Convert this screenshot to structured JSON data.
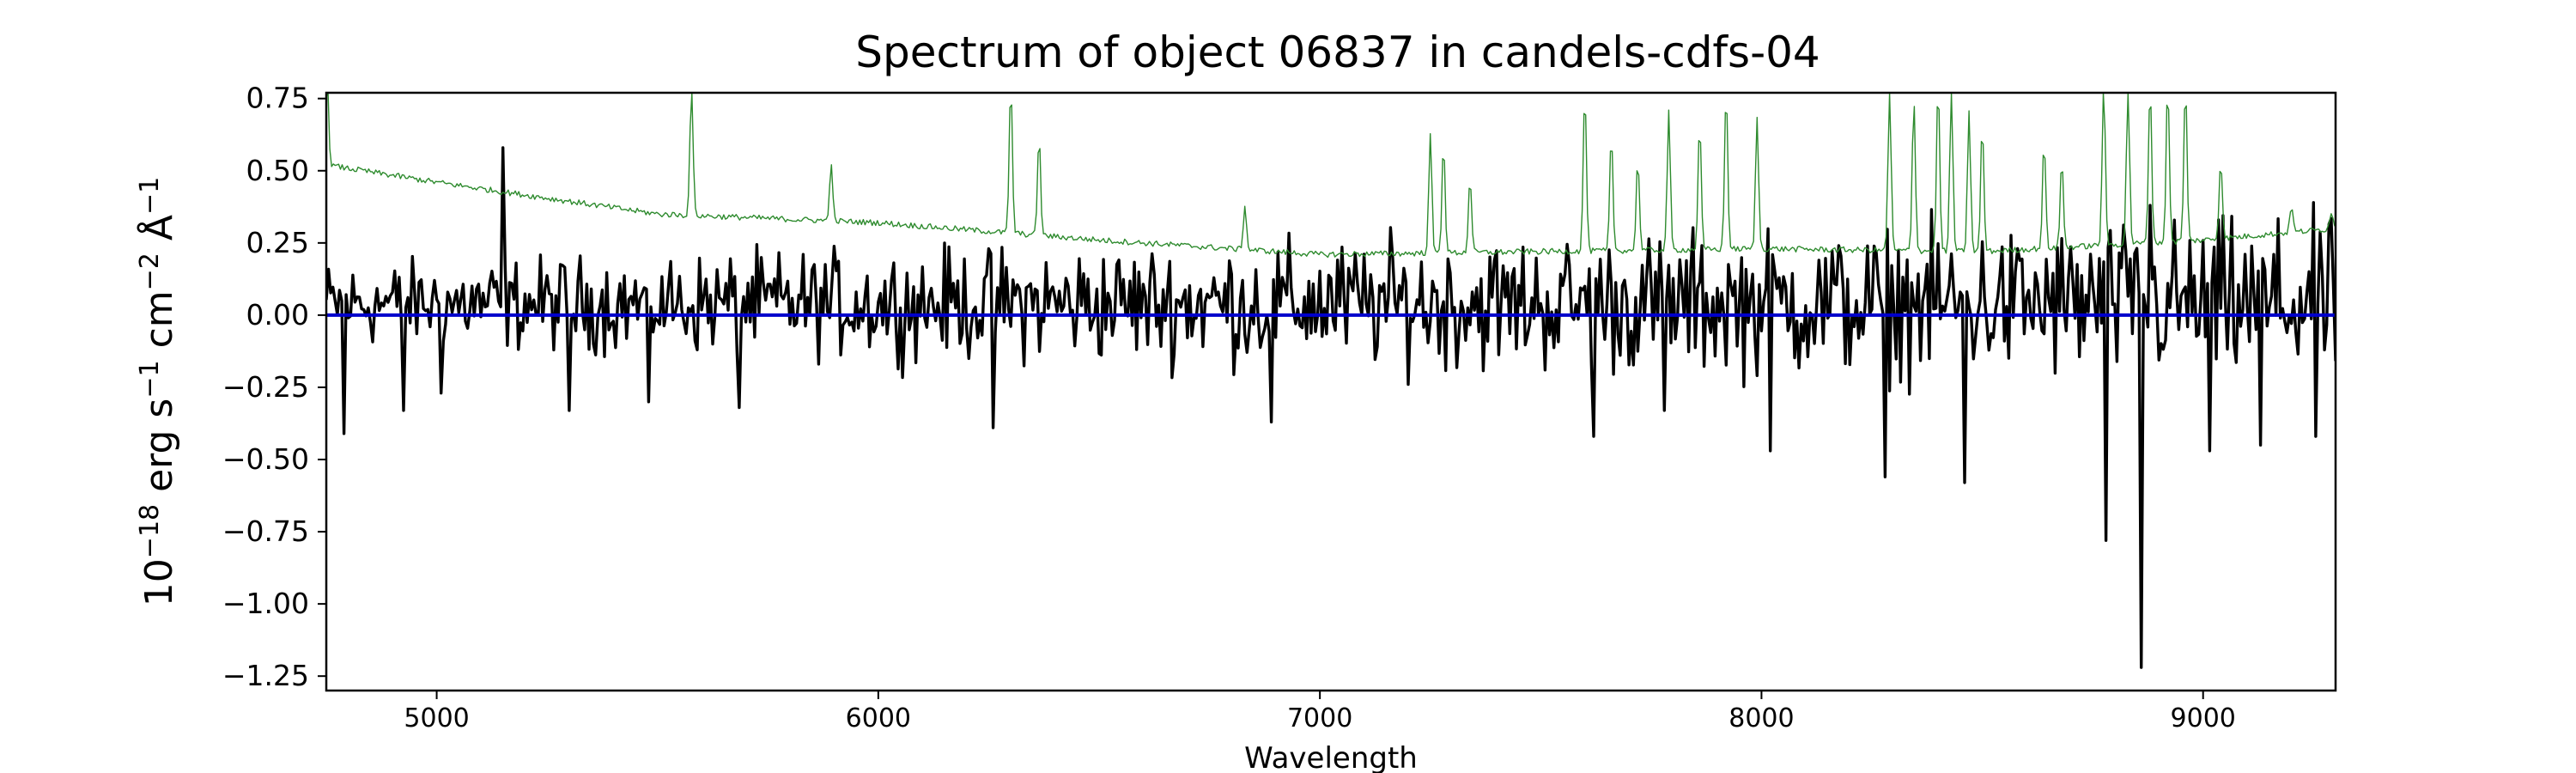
{
  "chart_data": {
    "type": "line",
    "title": "Spectrum of object 06837 in candels-cdfs-04",
    "xlabel": "Wavelength",
    "ylabel_parts": [
      "10",
      "−18",
      " erg s",
      "−1",
      " cm",
      "−2",
      " Å",
      "−1"
    ],
    "xlim": [
      4750,
      9300
    ],
    "ylim": [
      -1.3,
      0.77
    ],
    "xticks": [
      5000,
      6000,
      7000,
      8000,
      9000
    ],
    "xtick_labels": [
      "5000",
      "6000",
      "7000",
      "8000",
      "9000"
    ],
    "yticks": [
      0.75,
      0.5,
      0.25,
      0.0,
      -0.25,
      -0.5,
      -0.75,
      -1.0,
      -1.25
    ],
    "ytick_labels": [
      "0.75",
      "0.50",
      "0.25",
      "0.00",
      "−0.25",
      "−0.50",
      "−0.75",
      "−1.00",
      "−1.25"
    ],
    "grid": false,
    "series": [
      {
        "role": "flux",
        "color": "#000000",
        "sampling": {
          "x_start": 4750,
          "x_end": 9300,
          "step": 5
        },
        "features": [
          [
            4790,
            -0.41
          ],
          [
            4925,
            -0.33
          ],
          [
            5010,
            -0.27
          ],
          [
            5300,
            -0.33
          ],
          [
            5480,
            -0.3
          ],
          [
            5685,
            -0.32
          ],
          [
            6260,
            -0.39
          ],
          [
            6890,
            -0.37
          ],
          [
            7620,
            -0.42
          ],
          [
            7780,
            -0.33
          ],
          [
            8020,
            -0.47
          ],
          [
            8280,
            -0.56
          ],
          [
            8460,
            -0.58
          ],
          [
            8780,
            -0.78
          ],
          [
            8862,
            -1.22
          ],
          [
            9015,
            -0.47
          ],
          [
            9130,
            -0.45
          ],
          [
            9255,
            -0.42
          ],
          [
            5150,
            0.58
          ],
          [
            8880,
            0.38
          ]
        ]
      },
      {
        "role": "error",
        "color": "#2e8b2e",
        "continuum": [
          [
            4750,
            0.52
          ],
          [
            5000,
            0.46
          ],
          [
            5500,
            0.35
          ],
          [
            6000,
            0.32
          ],
          [
            6500,
            0.26
          ],
          [
            7000,
            0.21
          ],
          [
            7500,
            0.22
          ],
          [
            8000,
            0.23
          ],
          [
            8500,
            0.22
          ],
          [
            9000,
            0.26
          ],
          [
            9300,
            0.3
          ]
        ],
        "emission_lines": [
          [
            4752,
            0.8
          ],
          [
            5577,
            0.8
          ],
          [
            5893,
            0.52
          ],
          [
            6300,
            0.8
          ],
          [
            6364,
            0.62
          ],
          [
            6830,
            0.38
          ],
          [
            7250,
            0.62
          ],
          [
            7280,
            0.6
          ],
          [
            7340,
            0.48
          ],
          [
            7600,
            0.78
          ],
          [
            7660,
            0.62
          ],
          [
            7720,
            0.54
          ],
          [
            7790,
            0.7
          ],
          [
            7860,
            0.66
          ],
          [
            7920,
            0.78
          ],
          [
            7990,
            0.68
          ],
          [
            8290,
            0.78
          ],
          [
            8345,
            0.75
          ],
          [
            8400,
            0.8
          ],
          [
            8430,
            0.78
          ],
          [
            8470,
            0.7
          ],
          [
            8500,
            0.66
          ],
          [
            8640,
            0.6
          ],
          [
            8680,
            0.54
          ],
          [
            8775,
            0.8
          ],
          [
            8830,
            0.8
          ],
          [
            8880,
            0.8
          ],
          [
            8920,
            0.8
          ],
          [
            8960,
            0.8
          ],
          [
            9040,
            0.54
          ],
          [
            9200,
            0.38
          ],
          [
            9290,
            0.36
          ]
        ]
      },
      {
        "role": "zero",
        "color": "#0000cc",
        "x": [
          4750,
          9300
        ],
        "y": [
          0.0,
          0.0
        ]
      }
    ]
  }
}
